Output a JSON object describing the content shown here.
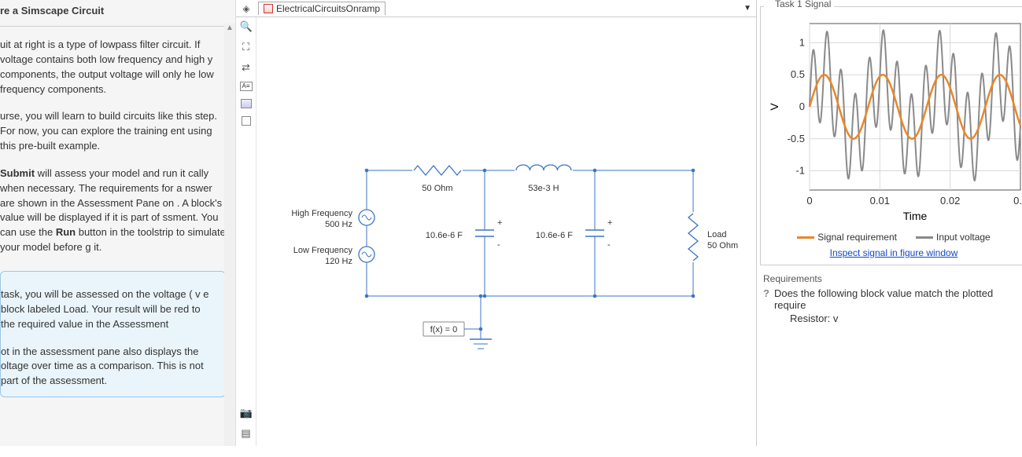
{
  "left": {
    "title": "re a Simscape Circuit",
    "p1": "uit at right is a type of lowpass filter circuit. If voltage contains both low frequency and high y components, the output voltage will only he low frequency components.",
    "p2a": "urse, you will learn to build circuits like this step. For now, you can explore the training ent using this pre-built example.",
    "p2b_before": " ",
    "p2b_strong1": "Submit",
    "p2b_mid": " will assess your model and run it cally when necessary. The requirements for a nswer are shown in the Assessment Pane on . A block's value will be displayed if it is part of ssment. You can use the ",
    "p2b_strong2": "Run",
    "p2b_after": " button in the toolstrip to simulate your model before g it.",
    "callout1": "task, you will be assessed on the voltage ( v e block labeled Load. Your result will be red to the required value in the Assessment",
    "callout2": "ot in the assessment pane also displays the oltage over time as a comparison. This is not part of the assessment."
  },
  "model": {
    "tab_name": "ElectricalCircuitsOnramp",
    "hf_label": "High Frequency",
    "hf_val": "500 Hz",
    "lf_label": "Low Frequency",
    "lf_val": "120 Hz",
    "r_top": "50 Ohm",
    "l_top": "53e-3 H",
    "c1": "10.6e-6 F",
    "c2": "10.6e-6 F",
    "load_label": "Load",
    "load_val": "50 Ohm",
    "fx": "f(x) = 0",
    "wire_color": "#3b74c4",
    "comp_color": "#2e6bb8"
  },
  "right": {
    "task_title": "Task 1 Signal",
    "legend_req": "Signal requirement",
    "legend_in": "Input voltage",
    "inspect": "Inspect signal in figure window",
    "req_head": "Requirements",
    "req_text": "Does the following block value match the plotted require",
    "req_sub": "Resistor: v",
    "plot": {
      "xlim": [
        0,
        0.03
      ],
      "ylim": [
        -1.3,
        1.3
      ],
      "xticks": [
        0,
        0.01,
        0.02
      ],
      "xtick_labels": [
        "0",
        "0.01",
        "0.02"
      ],
      "xtick_last": "0.",
      "yticks": [
        -1,
        -0.5,
        0,
        0.5,
        1
      ],
      "ytick_labels": [
        "-1",
        "-0.5",
        "0",
        "0.5",
        "1"
      ],
      "ylabel": "V",
      "xlabel": "Time",
      "grid_color": "#d9d9d9",
      "axis_color": "#555",
      "bg": "#ffffff",
      "req_color": "#e8872c",
      "req_width": 2.5,
      "in_color": "#8a8a8a",
      "in_width": 2.0,
      "req_series": {
        "freq_hz": 120,
        "amp": 0.5,
        "offset": 0
      },
      "in_series": {
        "comment": "sum of 120Hz@0.5 and 500Hz@0.7 approx",
        "components": [
          {
            "freq_hz": 120,
            "amp": 0.5
          },
          {
            "freq_hz": 500,
            "amp": 0.7
          }
        ]
      }
    }
  }
}
